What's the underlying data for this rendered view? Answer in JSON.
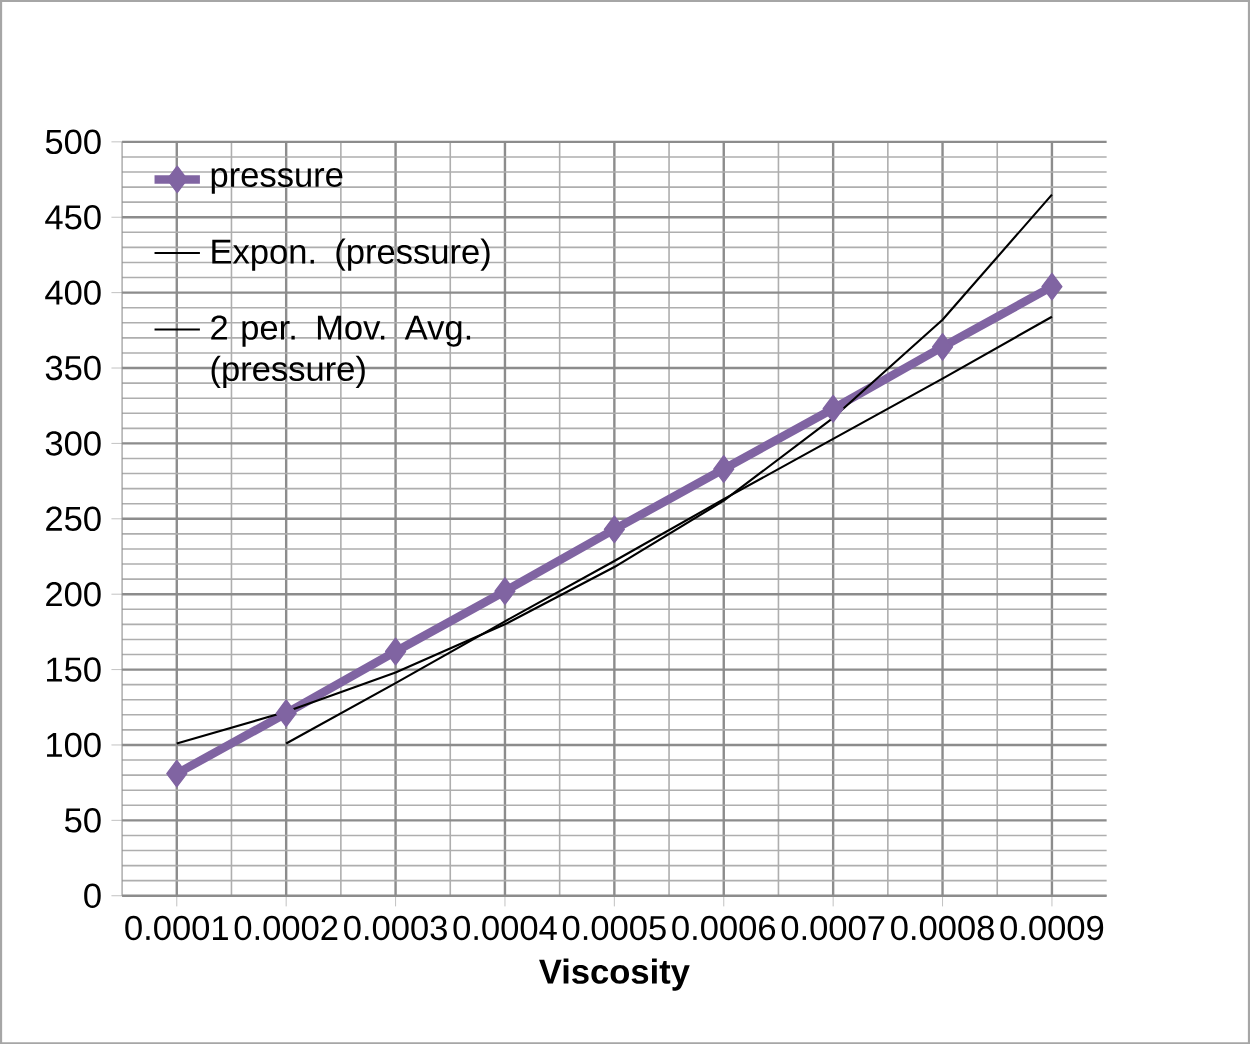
{
  "chart_data": {
    "type": "line",
    "xlabel": "Viscosity",
    "categories": [
      "0.0001",
      "0.0002",
      "0.0003",
      "0.0004",
      "0.0005",
      "0.0006",
      "0.0007",
      "0.0008",
      "0.0009"
    ],
    "series": [
      {
        "name": "pressure",
        "color": "#8064a2",
        "marker": "diamond",
        "values": [
          81,
          121,
          162,
          202,
          243,
          283,
          323,
          364,
          404
        ]
      },
      {
        "name": "Expon. (pressure)",
        "color": "#000000",
        "marker": "none",
        "values": [
          101,
          122,
          148,
          180,
          218,
          262,
          317,
          382,
          465
        ]
      },
      {
        "name": "2 per. Mov. Avg. (pressure)",
        "color": "#000000",
        "marker": "none",
        "values": [
          null,
          101,
          141,
          182,
          222,
          263,
          303,
          343,
          384
        ]
      }
    ],
    "ylim": [
      0,
      500
    ],
    "yticks": [
      0,
      50,
      100,
      150,
      200,
      250,
      300,
      350,
      400,
      450,
      500
    ],
    "grid": true,
    "legend": "top left"
  }
}
